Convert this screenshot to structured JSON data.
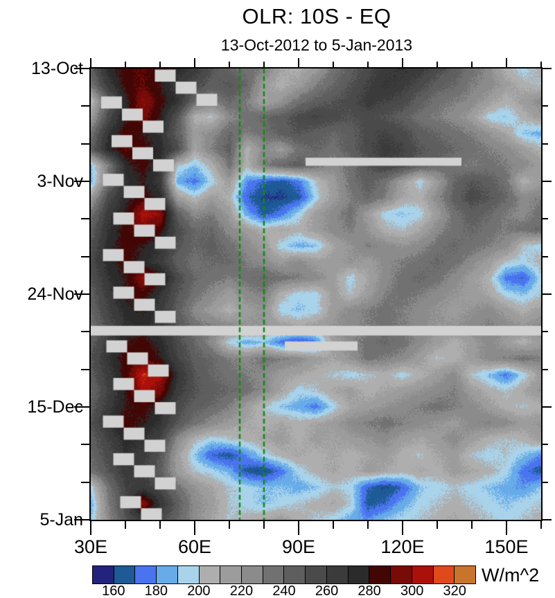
{
  "title": "OLR: 10S - EQ",
  "subtitle": "13-Oct-2012 to 5-Jan-2013",
  "x_axis": {
    "range_lon": [
      30,
      160
    ],
    "major": [
      {
        "lon": 30,
        "label": "30E"
      },
      {
        "lon": 60,
        "label": "60E"
      },
      {
        "lon": 90,
        "label": "90E"
      },
      {
        "lon": 120,
        "label": "120E"
      },
      {
        "lon": 150,
        "label": "150E"
      }
    ],
    "minor_lons": [
      40,
      50,
      70,
      80,
      100,
      110,
      130,
      140,
      160
    ]
  },
  "y_axis": {
    "range_days": [
      0,
      84
    ],
    "major": [
      {
        "day": 0,
        "label": "13-Oct"
      },
      {
        "day": 21,
        "label": "3-Nov"
      },
      {
        "day": 42,
        "label": "24-Nov"
      },
      {
        "day": 63,
        "label": "15-Dec"
      },
      {
        "day": 84,
        "label": "5-Jan"
      }
    ],
    "minor_days": [
      7,
      14,
      28,
      35,
      49,
      56,
      70,
      77
    ]
  },
  "colorbar": {
    "unit_label": "W/m^2",
    "min": 150,
    "max": 330,
    "step": 10,
    "tick_labels": [
      "160",
      "180",
      "200",
      "220",
      "240",
      "260",
      "280",
      "300",
      "320"
    ],
    "colors": [
      "#23227d",
      "#1e5a96",
      "#4a74ef",
      "#67abe9",
      "#a9d3ea",
      "#aeaeae",
      "#9c9c9c",
      "#8b8b8b",
      "#717171",
      "#5e5e5e",
      "#4a4a4a",
      "#3b3b3b",
      "#2b2b2b",
      "#420605",
      "#780b08",
      "#ab100b",
      "#e0491c",
      "#c8742c"
    ]
  },
  "reference_lines": {
    "color": "#118b11",
    "lons": [
      73,
      80
    ],
    "style": "dashed"
  },
  "chart_data": {
    "type": "heatmap",
    "title": "OLR: 10S - EQ",
    "subtitle": "13-Oct-2012 to 5-Jan-2013",
    "value_unit": "W/m^2",
    "levels_min": 150,
    "levels_max": 330,
    "levels_step": 10,
    "x_lons": [
      30,
      35,
      40,
      45,
      50,
      55,
      60,
      65,
      70,
      75,
      80,
      85,
      90,
      95,
      100,
      105,
      110,
      115,
      120,
      125,
      130,
      135,
      140,
      145,
      150,
      155,
      160
    ],
    "y_days": [
      0,
      3,
      6,
      9,
      12,
      15,
      18,
      21,
      24,
      27,
      30,
      33,
      36,
      39,
      42,
      45,
      48,
      51,
      54,
      57,
      60,
      63,
      66,
      69,
      72,
      75,
      78,
      81,
      84
    ],
    "y_start_date": "13-Oct-2012",
    "grid": [
      [
        245,
        275,
        285,
        290,
        285,
        275,
        265,
        250,
        240,
        235,
        230,
        210,
        205,
        215,
        235,
        245,
        255,
        265,
        270,
        265,
        255,
        245,
        235,
        225,
        205,
        195,
        205
      ],
      [
        235,
        265,
        285,
        290,
        280,
        265,
        255,
        245,
        250,
        240,
        215,
        205,
        215,
        230,
        240,
        250,
        260,
        270,
        265,
        255,
        245,
        240,
        230,
        225,
        215,
        205,
        200
      ],
      [
        200,
        245,
        275,
        300,
        285,
        270,
        240,
        230,
        240,
        230,
        210,
        220,
        235,
        245,
        250,
        255,
        265,
        260,
        255,
        245,
        235,
        230,
        225,
        215,
        205,
        215,
        225
      ],
      [
        215,
        255,
        280,
        295,
        280,
        250,
        205,
        200,
        225,
        235,
        240,
        245,
        255,
        260,
        255,
        250,
        255,
        250,
        245,
        235,
        230,
        225,
        215,
        195,
        190,
        205,
        215
      ],
      [
        235,
        270,
        285,
        280,
        270,
        245,
        215,
        225,
        240,
        230,
        235,
        245,
        250,
        245,
        240,
        245,
        255,
        260,
        255,
        245,
        240,
        235,
        230,
        220,
        210,
        190,
        185
      ],
      [
        245,
        275,
        290,
        285,
        275,
        255,
        210,
        230,
        245,
        205,
        225,
        215,
        235,
        240,
        235,
        245,
        255,
        265,
        260,
        250,
        245,
        240,
        235,
        230,
        225,
        215,
        205
      ],
      [
        190,
        230,
        275,
        285,
        270,
        200,
        190,
        205,
        235,
        205,
        230,
        240,
        245,
        235,
        225,
        235,
        250,
        260,
        255,
        245,
        240,
        235,
        230,
        235,
        230,
        225,
        215
      ],
      [
        185,
        235,
        270,
        280,
        265,
        185,
        175,
        195,
        215,
        180,
        170,
        165,
        175,
        200,
        215,
        235,
        245,
        235,
        215,
        195,
        215,
        240,
        250,
        245,
        235,
        205,
        215
      ],
      [
        215,
        255,
        275,
        285,
        275,
        215,
        200,
        215,
        205,
        170,
        160,
        160,
        165,
        195,
        215,
        230,
        240,
        230,
        210,
        205,
        225,
        245,
        255,
        250,
        240,
        225,
        230
      ],
      [
        235,
        265,
        280,
        305,
        300,
        245,
        225,
        230,
        215,
        185,
        165,
        175,
        195,
        215,
        225,
        235,
        215,
        195,
        190,
        195,
        215,
        235,
        245,
        240,
        230,
        225,
        235
      ],
      [
        245,
        270,
        285,
        295,
        285,
        255,
        240,
        240,
        225,
        215,
        205,
        210,
        205,
        215,
        225,
        230,
        220,
        205,
        200,
        210,
        225,
        235,
        240,
        235,
        230,
        235,
        240
      ],
      [
        250,
        275,
        285,
        280,
        270,
        250,
        240,
        245,
        235,
        225,
        215,
        195,
        185,
        190,
        210,
        220,
        230,
        225,
        220,
        225,
        235,
        240,
        235,
        230,
        225,
        200,
        195
      ],
      [
        255,
        275,
        285,
        275,
        265,
        245,
        235,
        240,
        240,
        230,
        225,
        215,
        225,
        215,
        215,
        220,
        215,
        225,
        230,
        235,
        240,
        235,
        225,
        215,
        200,
        195,
        205
      ],
      [
        250,
        270,
        280,
        300,
        285,
        255,
        240,
        235,
        230,
        235,
        240,
        235,
        230,
        225,
        215,
        195,
        210,
        225,
        235,
        240,
        235,
        225,
        215,
        205,
        175,
        170,
        195
      ],
      [
        245,
        265,
        280,
        285,
        270,
        250,
        235,
        225,
        215,
        225,
        230,
        205,
        195,
        195,
        215,
        200,
        215,
        230,
        235,
        230,
        225,
        220,
        215,
        210,
        195,
        190,
        200
      ],
      [
        240,
        260,
        275,
        280,
        265,
        245,
        225,
        215,
        205,
        215,
        220,
        195,
        190,
        195,
        215,
        225,
        230,
        235,
        230,
        225,
        220,
        215,
        220,
        225,
        215,
        205,
        215
      ],
      [
        235,
        255,
        270,
        275,
        265,
        250,
        235,
        230,
        225,
        220,
        220,
        215,
        210,
        215,
        220,
        225,
        230,
        235,
        230,
        225,
        220,
        220,
        225,
        230,
        225,
        220,
        225
      ],
      [
        245,
        265,
        280,
        285,
        275,
        255,
        240,
        225,
        195,
        185,
        190,
        175,
        165,
        175,
        215,
        225,
        235,
        240,
        235,
        225,
        215,
        205,
        215,
        225,
        215,
        205,
        215
      ],
      [
        250,
        270,
        285,
        290,
        280,
        260,
        245,
        240,
        230,
        225,
        235,
        230,
        225,
        215,
        210,
        220,
        235,
        230,
        225,
        215,
        200,
        205,
        215,
        225,
        230,
        235,
        230
      ],
      [
        245,
        265,
        285,
        310,
        305,
        270,
        250,
        240,
        235,
        230,
        225,
        215,
        210,
        205,
        200,
        195,
        200,
        205,
        195,
        205,
        215,
        225,
        200,
        190,
        175,
        195,
        215
      ],
      [
        240,
        260,
        280,
        305,
        295,
        265,
        250,
        245,
        240,
        235,
        225,
        210,
        195,
        200,
        210,
        215,
        205,
        210,
        215,
        220,
        225,
        230,
        215,
        205,
        200,
        210,
        220
      ],
      [
        245,
        265,
        280,
        285,
        275,
        255,
        245,
        240,
        230,
        215,
        200,
        190,
        185,
        175,
        195,
        210,
        215,
        220,
        225,
        230,
        235,
        230,
        225,
        215,
        205,
        200,
        205
      ],
      [
        250,
        270,
        285,
        280,
        270,
        250,
        235,
        225,
        215,
        210,
        205,
        210,
        205,
        210,
        215,
        225,
        230,
        235,
        230,
        225,
        220,
        215,
        225,
        230,
        225,
        215,
        220
      ],
      [
        245,
        260,
        275,
        270,
        260,
        225,
        205,
        195,
        200,
        205,
        210,
        215,
        205,
        215,
        210,
        215,
        220,
        225,
        215,
        210,
        215,
        225,
        215,
        205,
        200,
        205,
        215
      ],
      [
        240,
        255,
        270,
        265,
        250,
        215,
        190,
        170,
        165,
        180,
        195,
        205,
        210,
        205,
        210,
        205,
        210,
        215,
        205,
        200,
        210,
        215,
        200,
        195,
        200,
        190,
        180
      ],
      [
        235,
        250,
        265,
        260,
        245,
        215,
        200,
        195,
        185,
        165,
        160,
        175,
        195,
        205,
        210,
        205,
        215,
        210,
        205,
        210,
        205,
        215,
        210,
        205,
        195,
        175,
        165
      ],
      [
        195,
        235,
        260,
        265,
        255,
        235,
        220,
        210,
        200,
        195,
        190,
        190,
        185,
        190,
        200,
        195,
        170,
        160,
        170,
        190,
        195,
        200,
        195,
        190,
        185,
        180,
        190
      ],
      [
        185,
        230,
        255,
        300,
        270,
        245,
        225,
        215,
        200,
        195,
        190,
        195,
        200,
        205,
        210,
        200,
        165,
        170,
        185,
        195,
        200,
        205,
        200,
        195,
        190,
        195,
        200
      ],
      [
        190,
        225,
        250,
        265,
        255,
        240,
        225,
        210,
        200,
        205,
        210,
        215,
        205,
        200,
        195,
        185,
        180,
        190,
        195,
        200,
        205,
        210,
        205,
        200,
        195,
        200,
        205
      ]
    ],
    "missing": {
      "color": "#d2d2d2",
      "stripes": [
        {
          "day": [
            16.6,
            18.1
          ],
          "lon": [
            92,
            137
          ]
        },
        {
          "day": [
            47.9,
            49.7
          ],
          "lon": [
            30,
            160
          ]
        },
        {
          "day": [
            50.8,
            52.5
          ],
          "lon": [
            86,
            107
          ]
        }
      ],
      "staircases": [
        {
          "day": 0.2,
          "lon": 48.5
        },
        {
          "day": 5.2,
          "lon": 33.0
        },
        {
          "day": 12.4,
          "lon": 36.0
        },
        {
          "day": 19.6,
          "lon": 33.5
        },
        {
          "day": 26.8,
          "lon": 36.5
        },
        {
          "day": 33.6,
          "lon": 33.5
        },
        {
          "day": 40.6,
          "lon": 36.5
        },
        {
          "day": 50.6,
          "lon": 34.5
        },
        {
          "day": 57.6,
          "lon": 36.5
        },
        {
          "day": 64.6,
          "lon": 33.5
        },
        {
          "day": 71.6,
          "lon": 36.5
        },
        {
          "day": 79.6,
          "lon": 38.5
        }
      ],
      "staircase_step": {
        "days": 2.25,
        "lons": 6.0,
        "blocks": 3
      }
    }
  }
}
